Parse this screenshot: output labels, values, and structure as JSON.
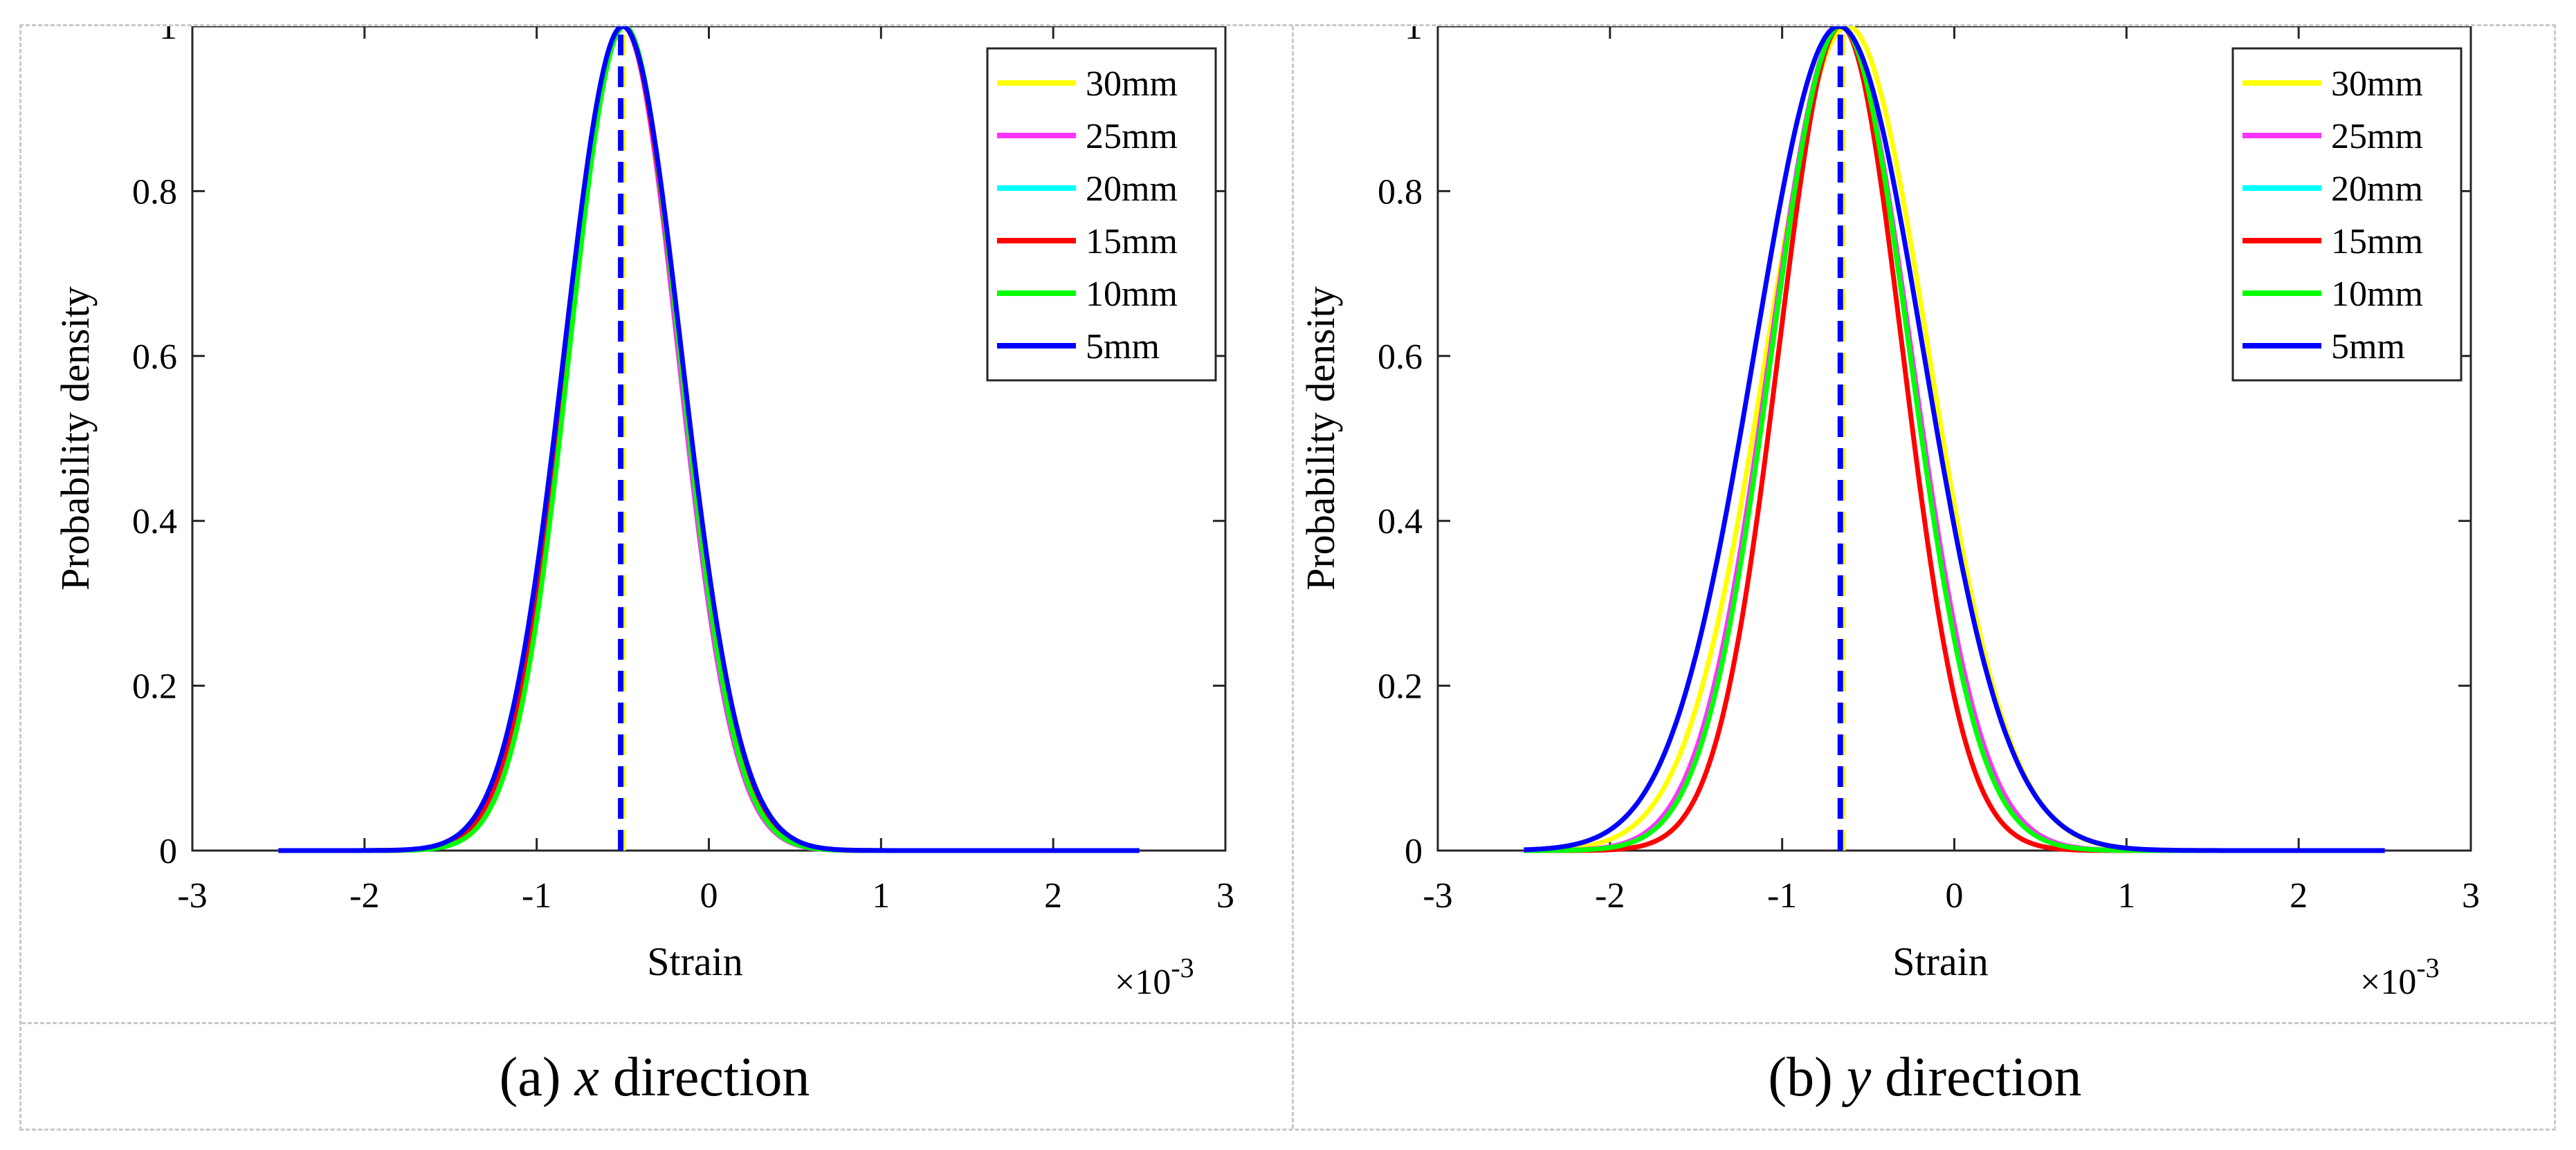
{
  "figure": {
    "captions": [
      {
        "label": "(a)",
        "var": "x",
        "rest": "direction"
      },
      {
        "label": "(b)",
        "var": "y",
        "rest": "direction"
      }
    ]
  },
  "colors": {
    "30mm": "#ffff00",
    "25mm": "#ff33ff",
    "20mm": "#00ffff",
    "15mm": "#ff0000",
    "10mm": "#00ff00",
    "5mm": "#0000ff"
  },
  "chart_data": [
    {
      "type": "line",
      "title": "",
      "xlabel": "Strain",
      "ylabel": "Probability density",
      "xlim": [
        -3,
        3
      ],
      "ylim": [
        0,
        1
      ],
      "x_multiplier": "×10-3",
      "x_multiplier_base": "×10",
      "x_multiplier_exp": "-3",
      "xticks": [
        -3,
        -2,
        -1,
        0,
        1,
        2,
        3
      ],
      "xtick_labels": [
        "-3",
        "-2",
        "-1",
        "0",
        "1",
        "2",
        "3"
      ],
      "yticks": [
        0,
        0.2,
        0.4,
        0.6,
        0.8,
        1
      ],
      "ytick_labels": [
        "0",
        "0.2",
        "0.4",
        "0.6",
        "0.8",
        "1"
      ],
      "x_range": [
        -2.5,
        2.5
      ],
      "legend_position": "top-right",
      "series": [
        {
          "name": "30mm",
          "color": "#ffff00",
          "mean": -0.5,
          "std": 0.33
        },
        {
          "name": "25mm",
          "color": "#ff33ff",
          "mean": -0.5,
          "std": 0.32
        },
        {
          "name": "20mm",
          "color": "#00ffff",
          "mean": -0.5,
          "std": 0.33
        },
        {
          "name": "15mm",
          "color": "#ff0000",
          "mean": -0.5,
          "std": 0.33
        },
        {
          "name": "10mm",
          "color": "#00ff00",
          "mean": -0.49,
          "std": 0.32
        },
        {
          "name": "5mm",
          "color": "#0000ff",
          "mean": -0.5,
          "std": 0.34
        }
      ],
      "mean_line": {
        "x": -0.5,
        "colors": [
          "#ffff00",
          "#0000ff"
        ]
      }
    },
    {
      "type": "line",
      "title": "",
      "xlabel": "Strain",
      "ylabel": "Probability density",
      "xlim": [
        -3,
        3
      ],
      "ylim": [
        0,
        1
      ],
      "x_multiplier": "×10-3",
      "x_multiplier_base": "×10",
      "x_multiplier_exp": "-3",
      "xticks": [
        -3,
        -2,
        -1,
        0,
        1,
        2,
        3
      ],
      "xtick_labels": [
        "-3",
        "-2",
        "-1",
        "0",
        "1",
        "2",
        "3"
      ],
      "yticks": [
        0,
        0.2,
        0.4,
        0.6,
        0.8,
        1
      ],
      "ytick_labels": [
        "0",
        "0.2",
        "0.4",
        "0.6",
        "0.8",
        "1"
      ],
      "x_range": [
        -2.5,
        2.5
      ],
      "legend_position": "top-right",
      "series": [
        {
          "name": "30mm",
          "color": "#ffff00",
          "mean": -0.62,
          "std": 0.47
        },
        {
          "name": "25mm",
          "color": "#ff33ff",
          "mean": -0.66,
          "std": 0.41
        },
        {
          "name": "20mm",
          "color": "#00ffff",
          "mean": -0.66,
          "std": 0.4
        },
        {
          "name": "15mm",
          "color": "#ff0000",
          "mean": -0.66,
          "std": 0.36
        },
        {
          "name": "10mm",
          "color": "#00ff00",
          "mean": -0.66,
          "std": 0.4
        },
        {
          "name": "5mm",
          "color": "#0000ff",
          "mean": -0.67,
          "std": 0.49
        }
      ],
      "mean_line": {
        "x": -0.65,
        "colors": [
          "#ffff00",
          "#0000ff"
        ]
      }
    }
  ]
}
